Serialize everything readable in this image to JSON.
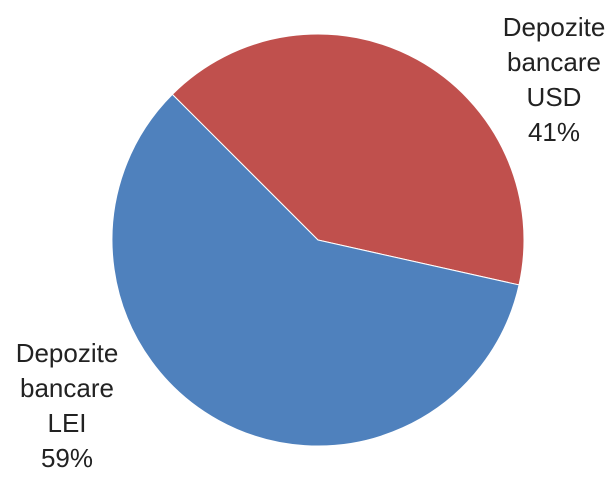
{
  "chart_data": {
    "type": "pie",
    "title": "",
    "slices": [
      {
        "name_lines": [
          "Depozite",
          "bancare",
          "USD"
        ],
        "value": 41,
        "value_label": "41%",
        "color": "#C0504D"
      },
      {
        "name_lines": [
          "Depozite",
          "bancare",
          "LEI"
        ],
        "value": 59,
        "value_label": "59%",
        "color": "#4F81BD"
      }
    ],
    "legend": "none",
    "labels": "outside-end"
  }
}
